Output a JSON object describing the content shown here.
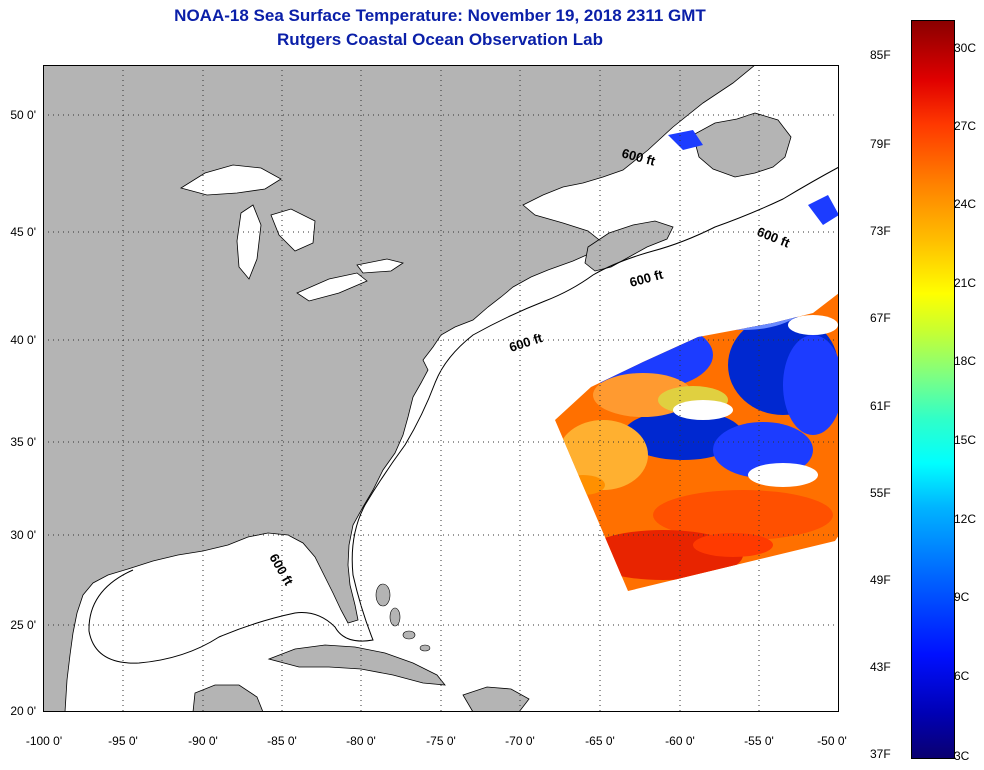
{
  "title": {
    "line1": "NOAA-18 Sea Surface Temperature:  November 19, 2018 2311 GMT",
    "line2": "Rutgers Coastal Ocean Observation Lab"
  },
  "axes": {
    "lon_labels": [
      "-100 0'",
      "-95 0'",
      "-90 0'",
      "-85 0'",
      "-80 0'",
      "-75 0'",
      "-70 0'",
      "-65 0'",
      "-60 0'",
      "-55 0'",
      "-50 0'"
    ],
    "lat_labels": [
      "50 0'",
      "45 0'",
      "40 0'",
      "35 0'",
      "30 0'",
      "25 0'",
      "20 0'"
    ],
    "lon_range": [
      -100,
      -50
    ],
    "lat_range": [
      20,
      52.5
    ]
  },
  "isobath_labels": [
    "600 ft",
    "600 ft",
    "600 ft",
    "600 ft",
    "600 ft"
  ],
  "colorbar": {
    "fahrenheit": [
      "85F",
      "79F",
      "73F",
      "67F",
      "61F",
      "55F",
      "49F",
      "43F",
      "37F"
    ],
    "celsius": [
      "30C",
      "27C",
      "24C",
      "21C",
      "18C",
      "15C",
      "12C",
      "9C",
      "6C",
      "3C"
    ]
  },
  "colors": {
    "land": "#b4b4b4",
    "ocean": "#ffffff",
    "title": "#0a1fa8",
    "warm": "#ff6a00",
    "cold": "#0028d0"
  }
}
